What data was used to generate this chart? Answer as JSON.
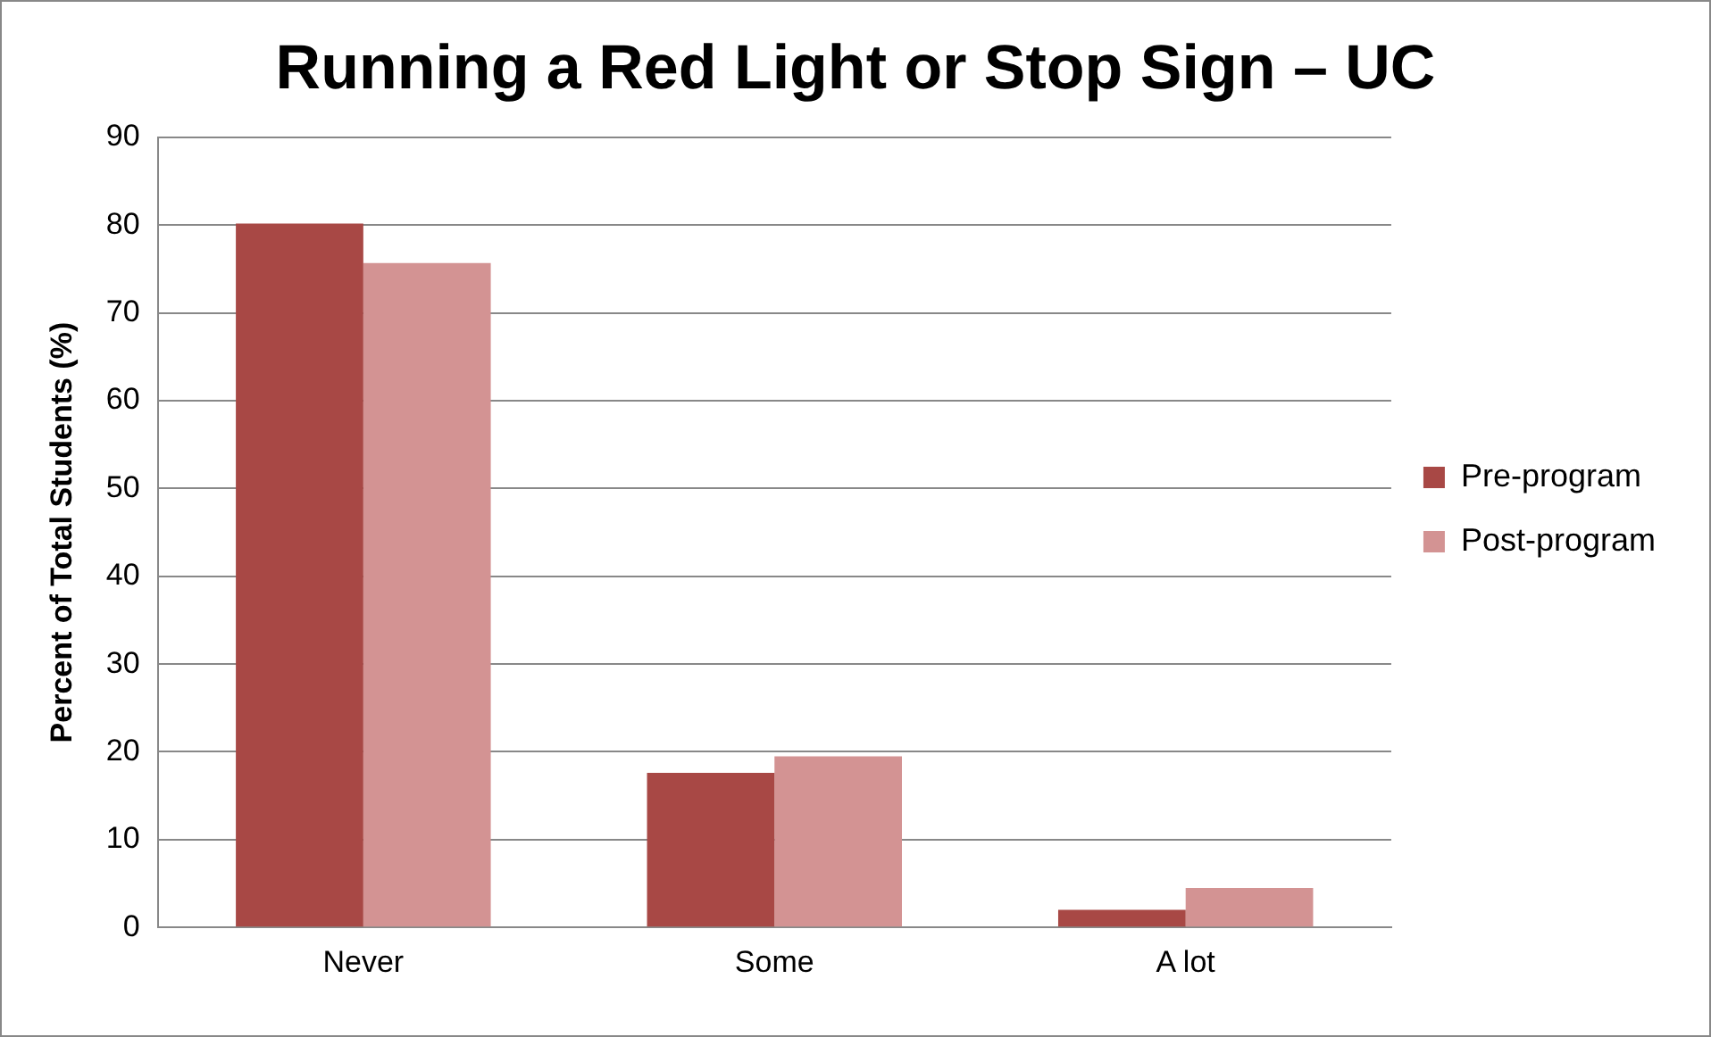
{
  "chart_data": {
    "type": "bar",
    "title": "Running a Red Light or Stop Sign – UC",
    "ylabel": "Percent of Total Students (%)",
    "categories": [
      "Never",
      "Some",
      "A lot"
    ],
    "series": [
      {
        "name": "Pre-program",
        "color": "#a84845",
        "values": [
          80.2,
          17.6,
          2.0
        ]
      },
      {
        "name": "Post-program",
        "color": "#d39393",
        "values": [
          75.7,
          19.5,
          4.5
        ]
      }
    ],
    "ylim": [
      0,
      90
    ],
    "yticks": [
      0,
      10,
      20,
      30,
      40,
      50,
      60,
      70,
      80,
      90
    ],
    "grid": "y",
    "legend": "right"
  }
}
